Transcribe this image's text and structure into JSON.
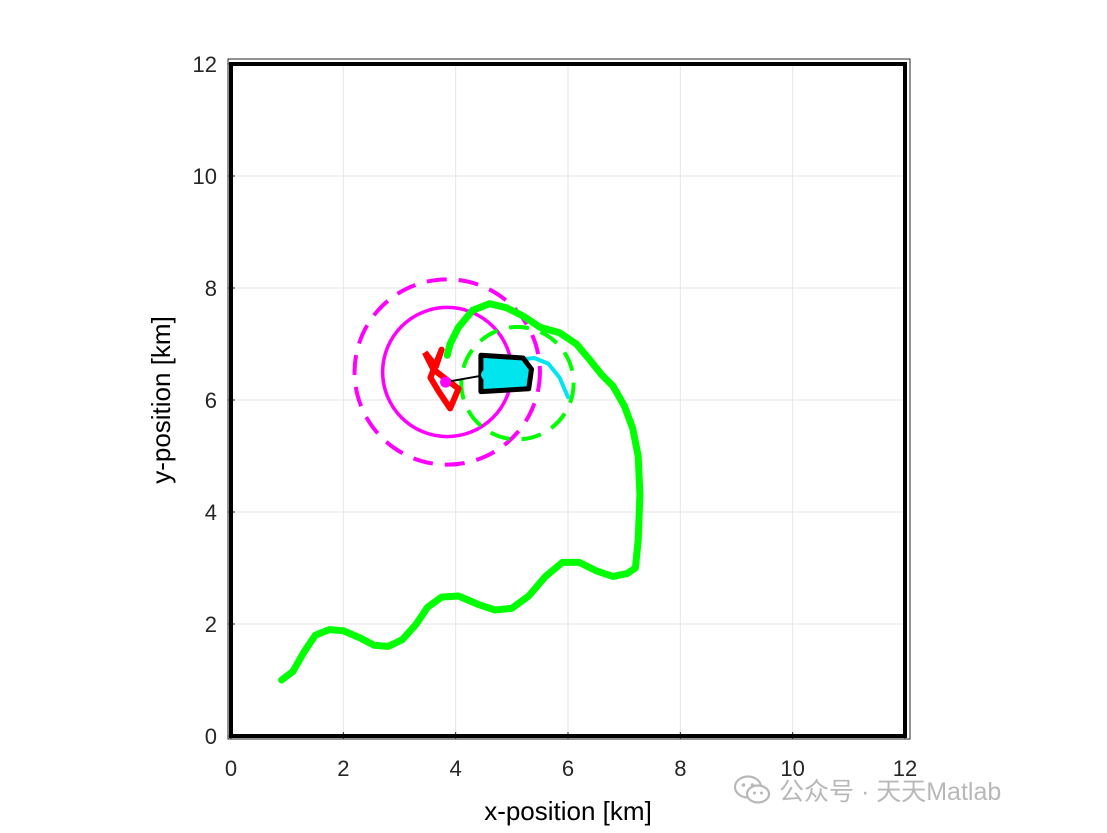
{
  "chart_data": {
    "type": "line",
    "xlabel": "x-position [km]",
    "ylabel": "y-position [km]",
    "xlim": [
      0,
      12
    ],
    "ylim": [
      0,
      12
    ],
    "xticks": [
      0,
      2,
      4,
      6,
      8,
      10,
      12
    ],
    "yticks": [
      0,
      2,
      4,
      6,
      8,
      10,
      12
    ],
    "grid": true,
    "boundary": {
      "color": "#000000",
      "x": [
        0,
        12
      ],
      "y": [
        0,
        12
      ]
    },
    "series": [
      {
        "name": "target-path",
        "color": "#00ff00",
        "style": "solid",
        "points": [
          [
            0.9,
            1.0
          ],
          [
            1.1,
            1.15
          ],
          [
            1.3,
            1.5
          ],
          [
            1.5,
            1.8
          ],
          [
            1.75,
            1.9
          ],
          [
            2.0,
            1.88
          ],
          [
            2.3,
            1.75
          ],
          [
            2.55,
            1.62
          ],
          [
            2.8,
            1.6
          ],
          [
            3.05,
            1.72
          ],
          [
            3.3,
            2.0
          ],
          [
            3.5,
            2.3
          ],
          [
            3.75,
            2.48
          ],
          [
            4.05,
            2.5
          ],
          [
            4.4,
            2.35
          ],
          [
            4.7,
            2.25
          ],
          [
            5.0,
            2.28
          ],
          [
            5.3,
            2.5
          ],
          [
            5.6,
            2.85
          ],
          [
            5.9,
            3.1
          ],
          [
            6.2,
            3.1
          ],
          [
            6.5,
            2.95
          ],
          [
            6.8,
            2.85
          ],
          [
            7.05,
            2.9
          ],
          [
            7.2,
            3.0
          ],
          [
            7.25,
            3.5
          ],
          [
            7.28,
            4.3
          ],
          [
            7.25,
            5.0
          ],
          [
            7.15,
            5.5
          ],
          [
            7.0,
            5.9
          ],
          [
            6.8,
            6.25
          ],
          [
            6.6,
            6.45
          ],
          [
            6.4,
            6.7
          ],
          [
            6.15,
            7.0
          ],
          [
            5.85,
            7.2
          ],
          [
            5.5,
            7.3
          ],
          [
            5.2,
            7.5
          ],
          [
            4.9,
            7.65
          ],
          [
            4.6,
            7.72
          ],
          [
            4.3,
            7.6
          ],
          [
            4.05,
            7.3
          ],
          [
            3.9,
            7.0
          ],
          [
            3.85,
            6.8
          ]
        ]
      },
      {
        "name": "pursuer-path",
        "color": "#00e5ee",
        "style": "solid",
        "points": [
          [
            4.5,
            6.5
          ],
          [
            4.8,
            6.62
          ],
          [
            5.1,
            6.72
          ],
          [
            5.4,
            6.75
          ],
          [
            5.65,
            6.65
          ],
          [
            5.85,
            6.4
          ],
          [
            6.0,
            6.05
          ]
        ]
      }
    ],
    "circles": [
      {
        "name": "target-sensor-outer",
        "color": "#ff00ff",
        "style": "dashed",
        "center": [
          3.85,
          6.5
        ],
        "radius": 1.65
      },
      {
        "name": "target-sensor-inner",
        "color": "#ff00ff",
        "style": "solid",
        "center": [
          3.85,
          6.5
        ],
        "radius": 1.15
      },
      {
        "name": "pursuer-sensor",
        "color": "#00ff00",
        "style": "dashed",
        "center": [
          5.1,
          6.3
        ],
        "radius": 1.0
      }
    ],
    "markers": [
      {
        "name": "target-position",
        "color": "#ff00ff",
        "x": 3.82,
        "y": 6.32
      },
      {
        "name": "pursuer-position",
        "color": "#00e5ee",
        "x": 4.55,
        "y": 6.45
      }
    ],
    "target_polygon": {
      "color": "#ff0000",
      "points": [
        [
          3.45,
          6.85
        ],
        [
          3.65,
          6.6
        ],
        [
          3.75,
          6.9
        ],
        [
          3.55,
          6.4
        ],
        [
          3.7,
          6.15
        ],
        [
          3.9,
          5.85
        ],
        [
          4.05,
          6.2
        ],
        [
          3.6,
          6.55
        ],
        [
          3.45,
          6.85
        ]
      ]
    },
    "pursuer_polygon": {
      "color": "#000000",
      "points": [
        [
          4.45,
          6.8
        ],
        [
          5.2,
          6.75
        ],
        [
          5.35,
          6.55
        ],
        [
          5.3,
          6.2
        ],
        [
          4.45,
          6.15
        ],
        [
          4.45,
          6.8
        ]
      ]
    },
    "connector": {
      "color": "#000000",
      "from": [
        3.82,
        6.32
      ],
      "to": [
        4.55,
        6.45
      ]
    }
  },
  "watermark": {
    "text": "公众号 · 天天Matlab",
    "icon": "wechat-icon"
  }
}
